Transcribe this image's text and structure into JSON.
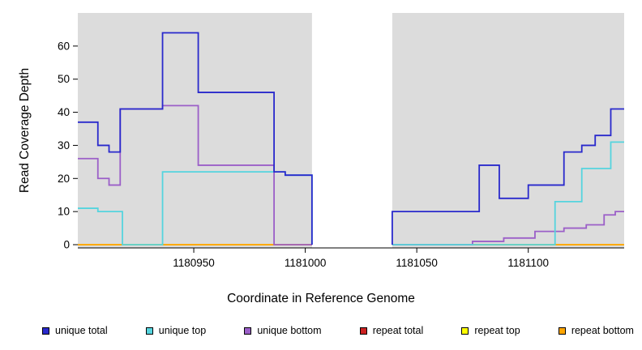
{
  "figure": {
    "xlabel": "Coordinate in Reference Genome",
    "ylabel": "Read Coverage Depth"
  },
  "legend": {
    "items": [
      {
        "label": "unique total",
        "color": "#2929CC"
      },
      {
        "label": "unique top",
        "color": "#55D4DE"
      },
      {
        "label": "unique bottom",
        "color": "#9B5FC8"
      },
      {
        "label": "repeat total",
        "color": "#CC2222"
      },
      {
        "label": "repeat top",
        "color": "#FFFF00"
      },
      {
        "label": "repeat bottom",
        "color": "#FFA500"
      }
    ]
  },
  "chart_data": {
    "type": "line",
    "subtype": "step",
    "title": "",
    "xlabel": "Coordinate in Reference Genome",
    "ylabel": "Read Coverage Depth",
    "xlim": [
      1180898,
      1181143
    ],
    "ylim": [
      0,
      70
    ],
    "x_ticks": [
      1180950,
      1181000,
      1181050,
      1181100
    ],
    "y_ticks": [
      0,
      10,
      20,
      30,
      40,
      50,
      60
    ],
    "grid": false,
    "legend_position": "bottom",
    "plot_background": "#DCDCDC",
    "gap_region": {
      "x_start": 1181003,
      "x_end": 1181039,
      "color": "#FFFFFF"
    },
    "series": [
      {
        "name": "repeat total",
        "color": "#CC2222",
        "segments": [
          [
            [
              1180898,
              1181003,
              0
            ]
          ],
          [
            [
              1181039,
              1181143,
              0
            ]
          ]
        ]
      },
      {
        "name": "repeat top",
        "color": "#FFFF00",
        "segments": [
          [
            [
              1180898,
              1181003,
              0
            ]
          ],
          [
            [
              1181039,
              1181143,
              0
            ]
          ]
        ]
      },
      {
        "name": "repeat bottom",
        "color": "#FFA500",
        "segments": [
          [
            [
              1180898,
              1181003,
              0
            ]
          ],
          [
            [
              1181039,
              1181143,
              0
            ]
          ]
        ]
      },
      {
        "name": "unique bottom",
        "color": "#9B5FC8",
        "segments": [
          [
            [
              1180898,
              1180907,
              26
            ],
            [
              1180907,
              1180912,
              20
            ],
            [
              1180912,
              1180917,
              18
            ],
            [
              1180917,
              1180936,
              41
            ],
            [
              1180936,
              1180952,
              42
            ],
            [
              1180952,
              1180986,
              24
            ],
            [
              1180986,
              1181003,
              0
            ]
          ],
          [
            [
              1181039,
              1181075,
              0
            ],
            [
              1181075,
              1181089,
              1
            ],
            [
              1181089,
              1181103,
              2
            ],
            [
              1181103,
              1181116,
              4
            ],
            [
              1181116,
              1181126,
              5
            ],
            [
              1181126,
              1181134,
              6
            ],
            [
              1181134,
              1181139,
              9
            ],
            [
              1181139,
              1181143,
              10
            ]
          ]
        ]
      },
      {
        "name": "unique top",
        "color": "#55D4DE",
        "segments": [
          [
            [
              1180898,
              1180907,
              11
            ],
            [
              1180907,
              1180918,
              10
            ],
            [
              1180918,
              1180936,
              0
            ],
            [
              1180936,
              1180991,
              22
            ],
            [
              1180991,
              1181003,
              21
            ],
            [
              1181003,
              1181003,
              0
            ]
          ],
          [
            [
              1181039,
              1181112,
              0
            ],
            [
              1181112,
              1181124,
              13
            ],
            [
              1181124,
              1181137,
              23
            ],
            [
              1181137,
              1181143,
              31
            ]
          ]
        ]
      },
      {
        "name": "unique total",
        "color": "#2929CC",
        "segments": [
          [
            [
              1180898,
              1180907,
              37
            ],
            [
              1180907,
              1180912,
              30
            ],
            [
              1180912,
              1180917,
              28
            ],
            [
              1180917,
              1180936,
              41
            ],
            [
              1180936,
              1180952,
              64
            ],
            [
              1180952,
              1180986,
              46
            ],
            [
              1180986,
              1180991,
              22
            ],
            [
              1180991,
              1181003,
              21
            ],
            [
              1181003,
              1181003,
              0
            ]
          ],
          [
            [
              1181039,
              1181039,
              0
            ],
            [
              1181039,
              1181078,
              10
            ],
            [
              1181078,
              1181087,
              24
            ],
            [
              1181087,
              1181100,
              14
            ],
            [
              1181100,
              1181116,
              18
            ],
            [
              1181116,
              1181124,
              28
            ],
            [
              1181124,
              1181130,
              30
            ],
            [
              1181130,
              1181137,
              33
            ],
            [
              1181137,
              1181143,
              41
            ]
          ]
        ]
      }
    ]
  }
}
